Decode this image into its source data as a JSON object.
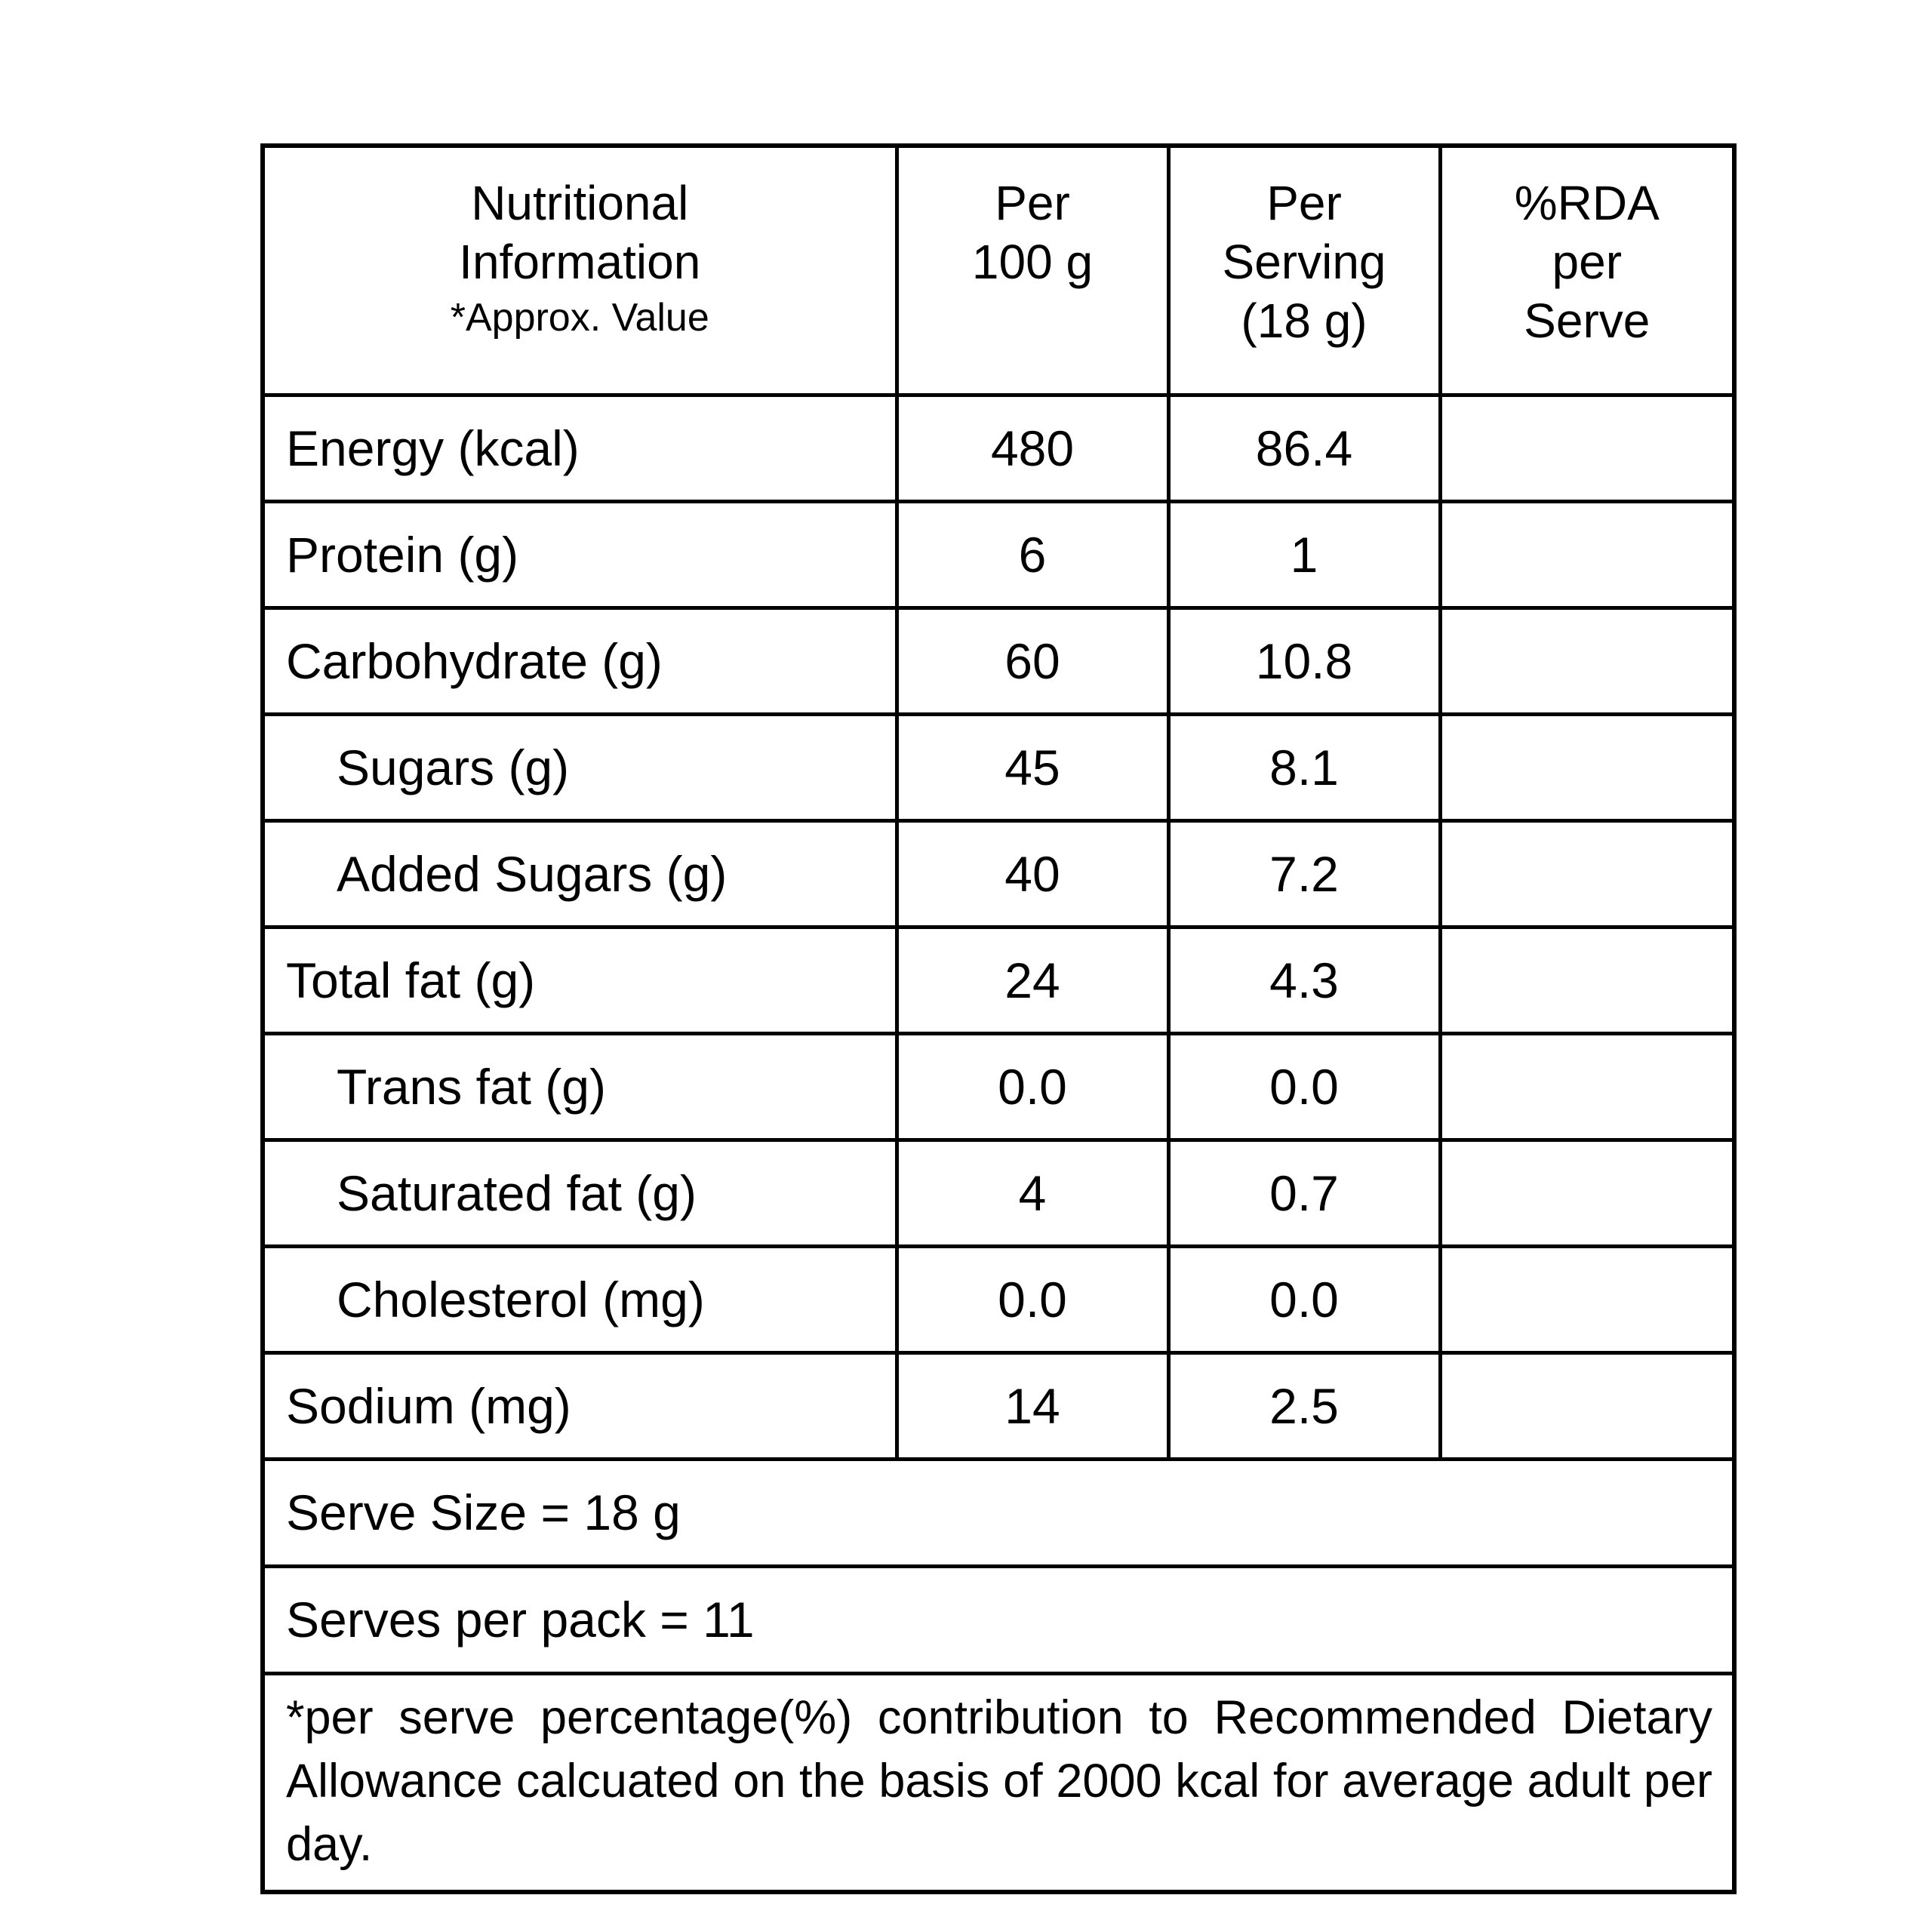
{
  "table": {
    "header": {
      "info": {
        "line1": "Nutritional",
        "line2": "Information",
        "line3": "*Approx. Value"
      },
      "per100": {
        "line1": "Per",
        "line2": "100 g"
      },
      "perServing": {
        "line1": "Per",
        "line2": "Serving",
        "line3": "(18 g)"
      },
      "rda": {
        "line1": "%RDA",
        "line2": "per",
        "line3": "Serve"
      }
    },
    "rows": [
      {
        "label": "Energy (kcal)",
        "indent": false,
        "per100": "480",
        "per_serving": "86.4",
        "rda": ""
      },
      {
        "label": "Protein (g)",
        "indent": false,
        "per100": "6",
        "per_serving": "1",
        "rda": ""
      },
      {
        "label": "Carbohydrate (g)",
        "indent": false,
        "per100": "60",
        "per_serving": "10.8",
        "rda": ""
      },
      {
        "label": "Sugars (g)",
        "indent": true,
        "per100": "45",
        "per_serving": "8.1",
        "rda": ""
      },
      {
        "label": "Added Sugars (g)",
        "indent": true,
        "per100": "40",
        "per_serving": "7.2",
        "rda": ""
      },
      {
        "label": "Total fat (g)",
        "indent": false,
        "per100": "24",
        "per_serving": "4.3",
        "rda": ""
      },
      {
        "label": "Trans fat (g)",
        "indent": true,
        "per100": "0.0",
        "per_serving": "0.0",
        "rda": ""
      },
      {
        "label": "Saturated fat (g)",
        "indent": true,
        "per100": "4",
        "per_serving": "0.7",
        "rda": ""
      },
      {
        "label": "Cholesterol (mg)",
        "indent": true,
        "per100": "0.0",
        "per_serving": "0.0",
        "rda": ""
      },
      {
        "label": "Sodium (mg)",
        "indent": false,
        "per100": "14",
        "per_serving": "2.5",
        "rda": ""
      }
    ],
    "serve_size": "Serve Size = 18 g",
    "serves_per_pack": "Serves per pack = 11",
    "footnote": "*per serve percentage(%) contribution to Recommended Dietary Allowance calcuated on the basis of 2000 kcal for average adult per day."
  }
}
